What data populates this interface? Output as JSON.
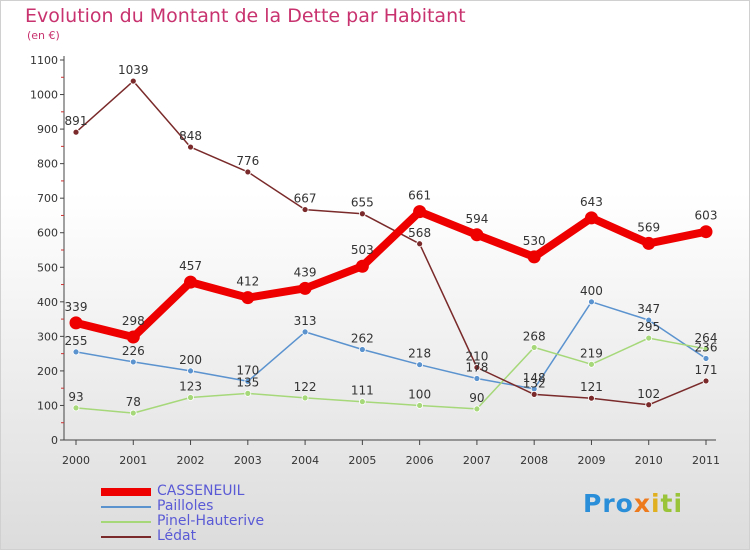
{
  "header": {
    "title": "Evolution du Montant de la Dette par Habitant",
    "unit": "(en €)"
  },
  "logo": {
    "parts": [
      "Pro",
      "x",
      "i",
      "ti"
    ]
  },
  "chart_data": {
    "type": "line",
    "title": "Evolution du Montant de la Dette par Habitant",
    "subtitle": "(en €)",
    "x": [
      "2000",
      "2001",
      "2002",
      "2003",
      "2004",
      "2005",
      "2006",
      "2007",
      "2008",
      "2009",
      "2010",
      "2011"
    ],
    "ylim": [
      0,
      1100
    ],
    "yticks": [
      0,
      100,
      200,
      300,
      400,
      500,
      600,
      700,
      800,
      900,
      1000,
      1100
    ],
    "grid": false,
    "legend": "bottom-left",
    "series": [
      {
        "name": "CASSENEUIL",
        "color": "#ee0000",
        "values": [
          339,
          298,
          457,
          412,
          439,
          503,
          661,
          594,
          530,
          643,
          569,
          603
        ],
        "labels": [
          "339",
          "298",
          "457",
          "412",
          "439",
          "503",
          "661",
          "594",
          "530",
          "643",
          "569",
          "603"
        ],
        "emphasis": true
      },
      {
        "name": "Pailloles",
        "color": "#5b93cf",
        "values": [
          255,
          226,
          200,
          170,
          313,
          262,
          218,
          178,
          148,
          400,
          347,
          236
        ],
        "labels": [
          "255",
          "226",
          "200",
          "170",
          "313",
          "262",
          "218",
          "178",
          "148",
          "400",
          "347",
          "236"
        ]
      },
      {
        "name": "Pinel-Hauterive",
        "color": "#a6d87a",
        "values": [
          93,
          78,
          123,
          135,
          122,
          111,
          100,
          90,
          268,
          219,
          295,
          264
        ],
        "labels": [
          "93",
          "78",
          "123",
          "135",
          "122",
          "111",
          "100",
          "90",
          "268",
          "219",
          "295",
          "264"
        ]
      },
      {
        "name": "Lédat",
        "color": "#7a2a2a",
        "values": [
          891,
          1039,
          848,
          776,
          667,
          655,
          568,
          210,
          132,
          121,
          102,
          171
        ],
        "labels": [
          "891",
          "1039",
          "848",
          "776",
          "667",
          "655",
          "568",
          "210",
          "132",
          "121",
          "102",
          "171"
        ]
      }
    ]
  }
}
